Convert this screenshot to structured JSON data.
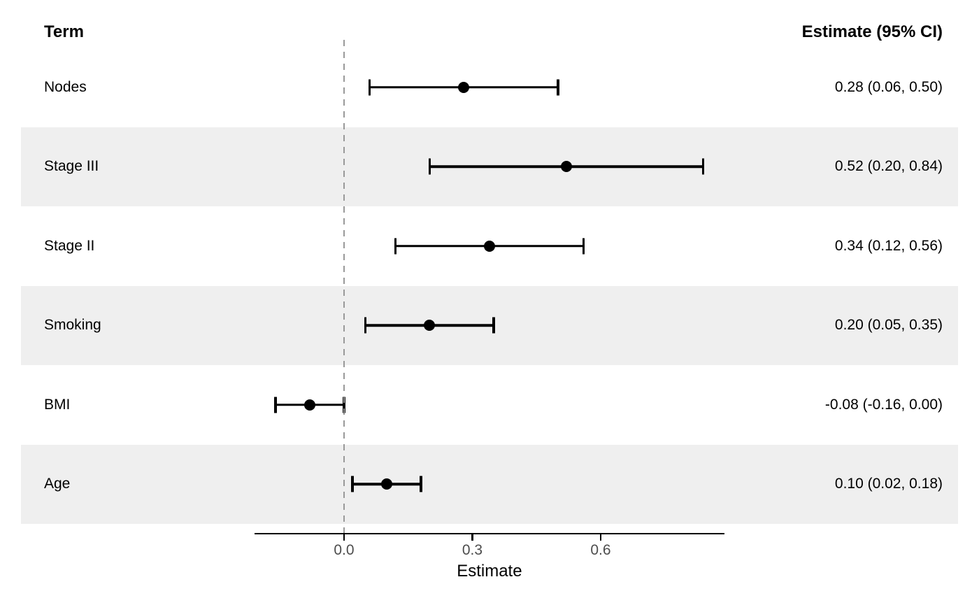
{
  "chart_data": {
    "type": "forest",
    "columns": {
      "term": "Term",
      "estimate": "Estimate (95% CI)"
    },
    "rows": [
      {
        "term": "Nodes",
        "estimate": 0.28,
        "ci_low": 0.06,
        "ci_high": 0.5,
        "label": "0.28 (0.06, 0.50)"
      },
      {
        "term": "Stage III",
        "estimate": 0.52,
        "ci_low": 0.2,
        "ci_high": 0.84,
        "label": "0.52 (0.20, 0.84)"
      },
      {
        "term": "Stage II",
        "estimate": 0.34,
        "ci_low": 0.12,
        "ci_high": 0.56,
        "label": "0.34 (0.12, 0.56)"
      },
      {
        "term": "Smoking",
        "estimate": 0.2,
        "ci_low": 0.05,
        "ci_high": 0.35,
        "label": "0.20 (0.05, 0.35)"
      },
      {
        "term": "BMI",
        "estimate": -0.08,
        "ci_low": -0.16,
        "ci_high": 0.0,
        "label": "-0.08 (-0.16, 0.00)"
      },
      {
        "term": "Age",
        "estimate": 0.1,
        "ci_low": 0.02,
        "ci_high": 0.18,
        "label": "0.10 (0.02, 0.18)"
      }
    ],
    "xlabel": "Estimate",
    "xticks": [
      0.0,
      0.3,
      0.6
    ],
    "xtick_labels": [
      "0.0",
      "0.3",
      "0.6"
    ],
    "xlim": [
      -0.21,
      0.89
    ],
    "reference_line": 0,
    "grid": false,
    "legend": "none",
    "colors": {
      "stripe": "#efefef",
      "marker": "#000000",
      "ci": "#000000",
      "axis": "#000000",
      "tick_label": "#4d4d4d",
      "reference_line": "#999999"
    }
  }
}
